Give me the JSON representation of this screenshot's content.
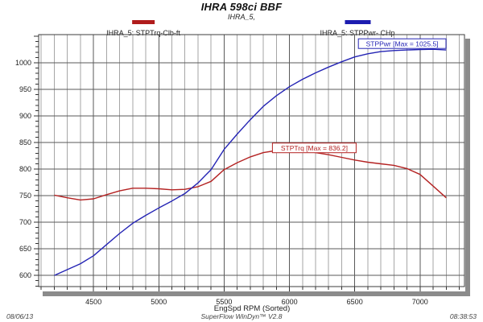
{
  "header": {
    "title": "IHRA 598ci BBF",
    "subtitle": "IHRA_5,"
  },
  "legend": [
    {
      "label": "IHRA_5: STPTrq-Clb-ft",
      "color": "#b01c1c",
      "swatch_width": 28
    },
    {
      "label": "IHRA_5: STPPwr- CHp",
      "color": "#1c1cb0",
      "swatch_width": 32
    }
  ],
  "footer": {
    "date": "08/06/13",
    "app": "SuperFlow WinDyn™ V2.8",
    "time": "08:38:53"
  },
  "chart_data": {
    "type": "line",
    "title": "IHRA 598ci BBF",
    "xlabel": "EngSpd RPM (Sorted)",
    "ylabel": "",
    "xlim": [
      4080,
      7340
    ],
    "ylim": [
      579,
      1053
    ],
    "x_ticks": [
      4500,
      5000,
      5500,
      6000,
      6500,
      7000
    ],
    "x_grid_step": 100,
    "y_ticks": [
      600,
      650,
      700,
      750,
      800,
      850,
      900,
      950,
      1000
    ],
    "y_minor_tick_step": 10,
    "grid": "vertical every 100 RPM (dark every 500), horizontal every 50",
    "legend_position": "top",
    "rpm": [
      4200,
      4300,
      4400,
      4500,
      4600,
      4700,
      4800,
      4900,
      5000,
      5100,
      5200,
      5300,
      5400,
      5500,
      5600,
      5700,
      5800,
      5900,
      6000,
      6100,
      6200,
      6300,
      6400,
      6500,
      6600,
      6700,
      6800,
      6900,
      7000,
      7100,
      7200
    ],
    "series": [
      {
        "name": "IHRA_5: STPTrq-Clb-ft",
        "units": "Clb-ft",
        "color": "#b42222",
        "max": 836.2,
        "values": [
          751,
          746,
          742,
          744,
          752,
          759,
          764,
          764,
          763,
          761,
          762,
          767,
          777,
          799,
          812,
          823,
          831,
          835,
          836.2,
          834,
          831,
          827,
          822,
          817,
          813,
          810,
          807,
          801,
          790,
          768,
          746
        ]
      },
      {
        "name": "IHRA_5: STPPwr- CHp",
        "units": "CHp",
        "color": "#2424b4",
        "max": 1025.5,
        "values": [
          600,
          611,
          622,
          637,
          658,
          679,
          698,
          713,
          727,
          740,
          754,
          774,
          799,
          837,
          866,
          893,
          918,
          938,
          955,
          969,
          981,
          992,
          1002,
          1011,
          1017,
          1021,
          1023,
          1024,
          1025,
          1025.5,
          1024
        ]
      }
    ],
    "annotations": [
      {
        "text": "STPTrq [Max = 836.2]",
        "color": "#b42222",
        "rpm": 6190,
        "value": 840
      },
      {
        "text": "STPPwr [Max = 1025.5]",
        "color": "#2424b4",
        "rpm": 6863,
        "value": 1036
      }
    ],
    "colors": {
      "grid_minor": "#a6a6a6",
      "grid_major": "#5a5a5a",
      "frame": "#3c3c3c",
      "shadow": "#8b8b8b",
      "tick_label": "#222222"
    }
  }
}
